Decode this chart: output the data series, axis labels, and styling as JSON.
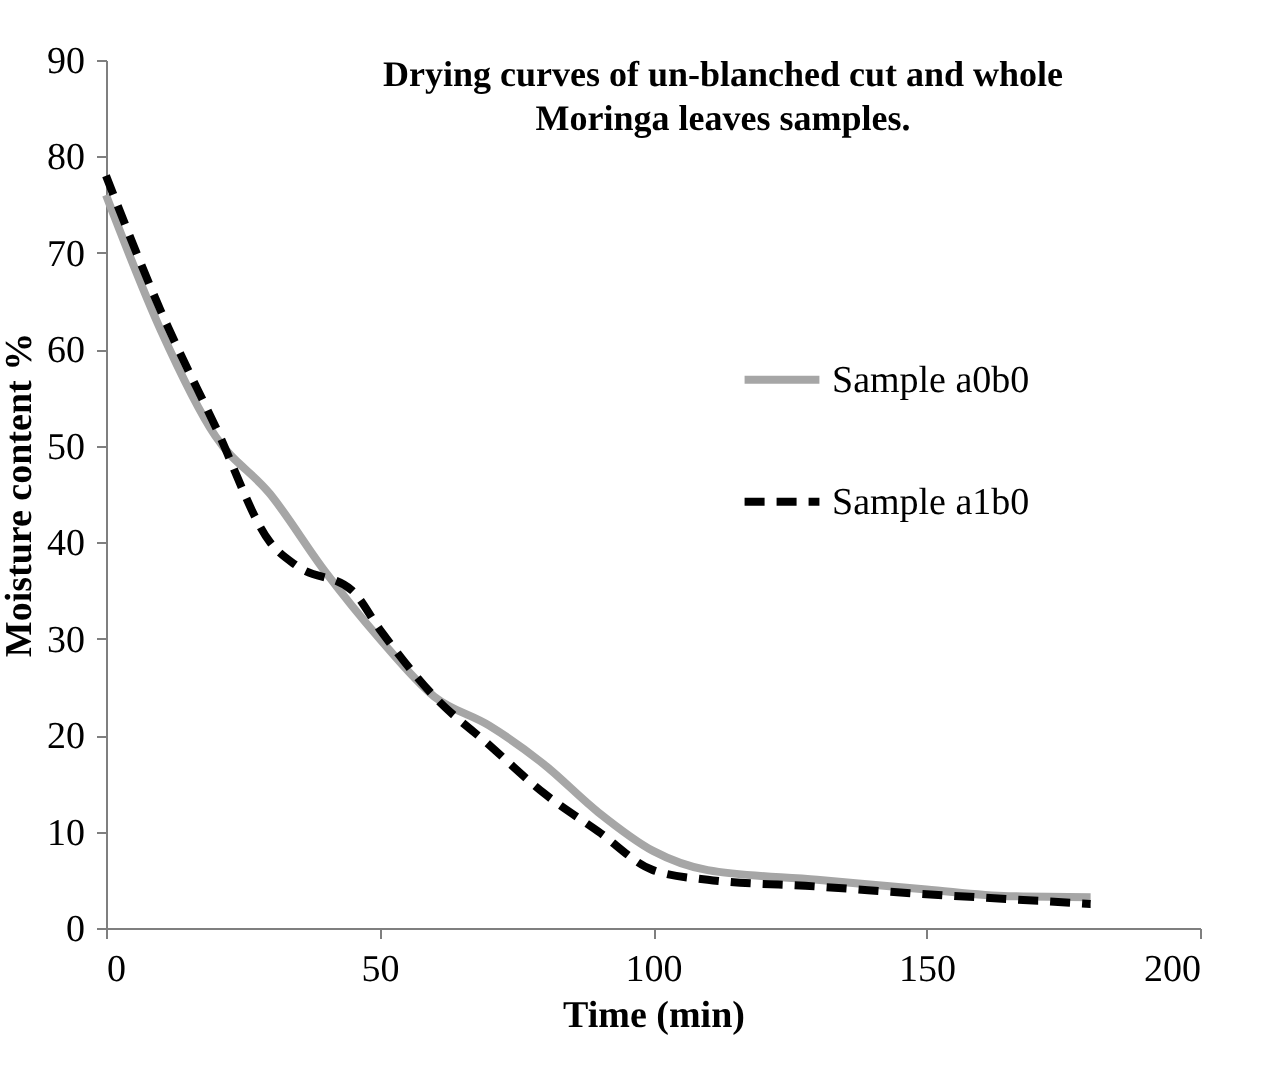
{
  "chart_data": {
    "type": "line",
    "title": "Drying curves of un-blanched cut and whole Moringa leaves samples.",
    "xlabel": "Time (min)",
    "ylabel": "Moisture content %",
    "xlim": [
      0,
      200
    ],
    "xticks": [
      0,
      50,
      100,
      150,
      200
    ],
    "ylim": [
      0,
      90
    ],
    "yticks": [
      0,
      10,
      20,
      30,
      40,
      50,
      60,
      70,
      80,
      90
    ],
    "grid": false,
    "legend": "right",
    "series": [
      {
        "name": "Sample a0b0",
        "color": "#a6a6a6",
        "line_style": "solid",
        "x": [
          0,
          10,
          20,
          30,
          40,
          50,
          60,
          70,
          80,
          90,
          100,
          110,
          130,
          150,
          165,
          180
        ],
        "values": [
          76,
          62,
          51,
          45,
          37,
          30,
          24,
          21,
          17,
          12,
          8,
          6,
          5,
          4,
          3.3,
          3.2
        ]
      },
      {
        "name": "Sample a1b0",
        "color": "#000000",
        "line_style": "dashed",
        "x": [
          0,
          10,
          20,
          30,
          35,
          45,
          50,
          60,
          70,
          80,
          90,
          100,
          110,
          130,
          150,
          165,
          180
        ],
        "values": [
          78,
          64,
          52,
          40,
          37.5,
          35,
          31,
          24,
          19,
          14,
          10,
          6,
          5,
          4.3,
          3.5,
          3,
          2.5
        ]
      }
    ]
  }
}
